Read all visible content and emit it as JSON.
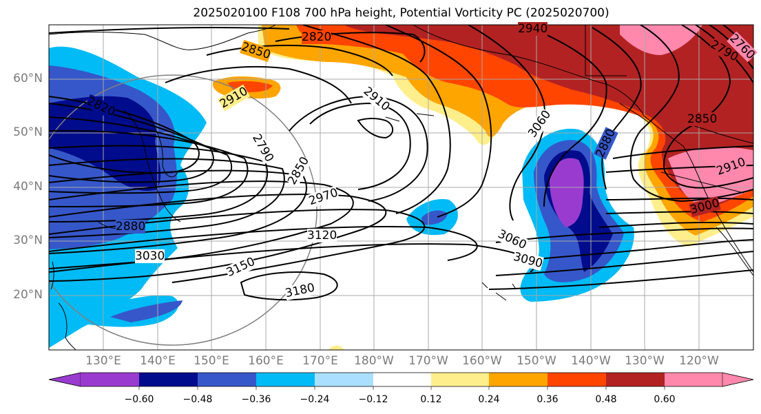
{
  "title": "2025020100 F108 700 hPa height, Potential Vorticity PC (2025020700)",
  "lat_labels": [
    "60°N",
    "50°N",
    "40°N",
    "30°N",
    "20°N"
  ],
  "lon_labels": [
    "130°E",
    "140°E",
    "150°E",
    "160°E",
    "170°E",
    "180°W",
    "170°W",
    "160°W",
    "150°W",
    "140°W",
    "130°W",
    "120°W"
  ],
  "contour_labels": [
    "2820",
    "2940",
    "2850",
    "2910",
    "2910",
    "2820",
    "2790",
    "2850",
    "2970",
    "3120",
    "3150",
    "3180",
    "3060",
    "3090",
    "3030",
    "2880",
    "2880",
    "3060",
    "2850",
    "2910",
    "3000",
    "2790",
    "2760"
  ],
  "colorbar": {
    "ticks": [
      "−0.60",
      "−0.48",
      "−0.36",
      "−0.24",
      "−0.12",
      "0.12",
      "0.24",
      "0.36",
      "0.48",
      "0.60"
    ],
    "colors": [
      "#9a3bd0",
      "#000c8c",
      "#3657c9",
      "#00bbf5",
      "#aadfff",
      "#ffffff",
      "#ffee8c",
      "#ffa500",
      "#ff4500",
      "#b22222",
      "#ff88ac"
    ]
  }
}
